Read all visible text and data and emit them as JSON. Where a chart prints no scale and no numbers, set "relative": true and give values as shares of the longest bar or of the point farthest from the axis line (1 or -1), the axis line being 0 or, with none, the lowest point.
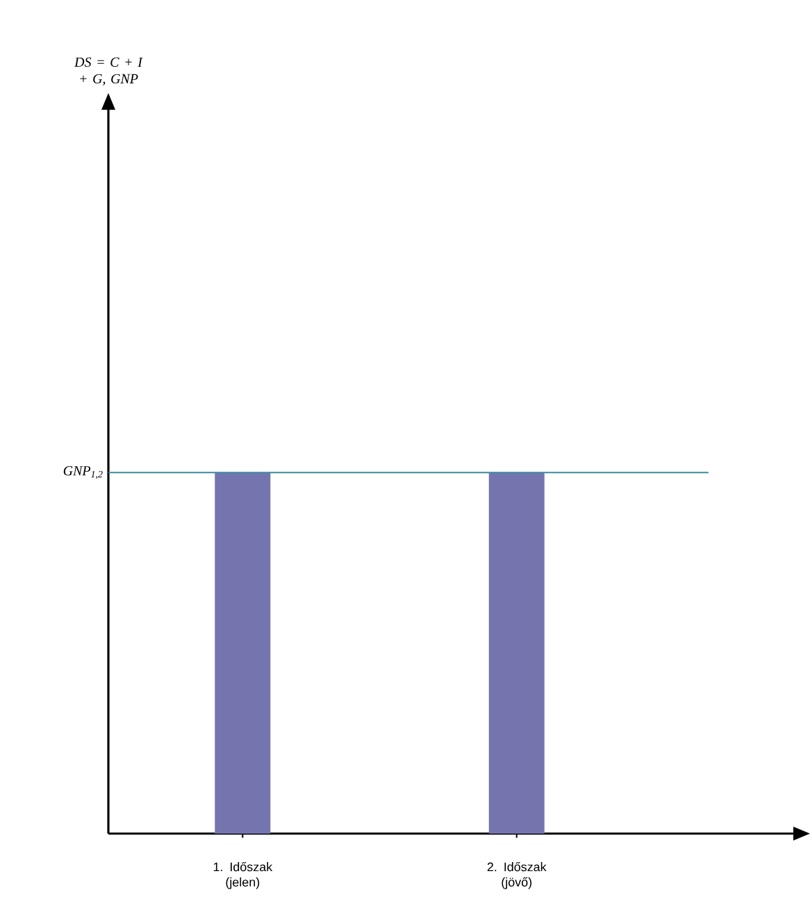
{
  "chart_data": {
    "type": "bar",
    "relative": true,
    "annotations": [
      "DS = C + I + G, GNP"
    ],
    "categories": [
      "1. Időszak (jelen)",
      "2. Időszak (jövő)"
    ],
    "values": [
      1,
      1
    ],
    "color": "#7474ae",
    "ref_lines": [
      {
        "axis": "y",
        "value": 1,
        "label": "GNP$_{1,2}$",
        "color": "#3a8aa0"
      }
    ]
  }
}
